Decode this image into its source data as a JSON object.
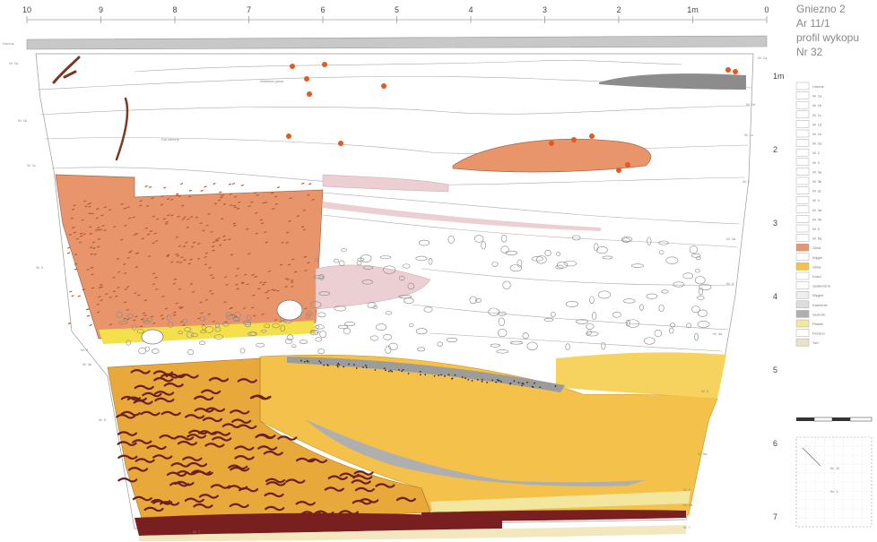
{
  "title": {
    "lines": [
      "Gniezno 2",
      "Ar 11/1",
      "profil wykopu",
      "Nr 32"
    ]
  },
  "ruler": {
    "labels": [
      "10",
      "9",
      "8",
      "7",
      "6",
      "5",
      "4",
      "3",
      "2",
      "1m",
      "0"
    ]
  },
  "depth_scale": {
    "labels": [
      "1m",
      "2",
      "3",
      "4",
      "5",
      "6",
      "7"
    ]
  },
  "colors": {
    "orange_clay": "#E9956B",
    "yellow_sand": "#F4C24A",
    "dark_brown": "#7A1F1F",
    "grey": "#AFAFAF",
    "pink": "#EBCFD3",
    "light_yellow": "#F3E7A0",
    "dark_grey": "#8C8C8C",
    "outline": "#999999"
  },
  "legend": {
    "items": [
      {
        "label": "Humus",
        "color": "#ffffff"
      },
      {
        "label": "W. 1a",
        "color": "#ffffff"
      },
      {
        "label": "W. 1b",
        "color": "#ffffff"
      },
      {
        "label": "W. 1c",
        "color": "#ffffff"
      },
      {
        "label": "W. 1d",
        "color": "#ffffff"
      },
      {
        "label": "W. 1e",
        "color": "#ffffff"
      },
      {
        "label": "W. 2a",
        "color": "#ffffff"
      },
      {
        "label": "W. 2",
        "color": "#ffffff"
      },
      {
        "label": "W. 3",
        "color": "#ffffff"
      },
      {
        "label": "W. 3a",
        "color": "#ffffff"
      },
      {
        "label": "W. 3b",
        "color": "#ffffff"
      },
      {
        "label": "W. 3c",
        "color": "#ffffff"
      },
      {
        "label": "W. 4",
        "color": "#ffffff"
      },
      {
        "label": "W. 4a",
        "color": "#ffffff"
      },
      {
        "label": "W. 4b",
        "color": "#ffffff"
      },
      {
        "label": "W. 5",
        "color": "#ffffff"
      },
      {
        "label": "W. 5a",
        "color": "#ffffff"
      },
      {
        "label": "Glina",
        "color": "#E9956B"
      },
      {
        "label": "Węgle",
        "color": "#ffffff"
      },
      {
        "label": "Glina",
        "color": "#F4C24A"
      },
      {
        "label": "Kości",
        "color": "#ffffff"
      },
      {
        "label": "Spalenizna",
        "color": "#ffffff"
      },
      {
        "label": "Węgiel",
        "color": "#EEEEEE"
      },
      {
        "label": "Kamienie",
        "color": "#DDDDDD"
      },
      {
        "label": "Szarość",
        "color": "#AFAFAF"
      },
      {
        "label": "Piasek",
        "color": "#F3E7A0"
      },
      {
        "label": "Drewno",
        "color": "#ffffff"
      },
      {
        "label": "Torf",
        "color": "#E8E2C8"
      }
    ]
  },
  "layer_labels": [
    "Humus",
    "W. 1a",
    "W. 1b",
    "W. 1c",
    "W. 1d",
    "W. 2",
    "W. 3",
    "W. 3a",
    "W. 4",
    "W. 4a",
    "W. 5",
    "W. 5a",
    "W. 6",
    "W. 6a",
    "W. 7"
  ],
  "inner_notes": [
    "Warstwa gruzu",
    "Dół ziemny"
  ],
  "plan_box": {
    "labels": [
      "Ar. 11",
      "Ar. 1"
    ]
  }
}
